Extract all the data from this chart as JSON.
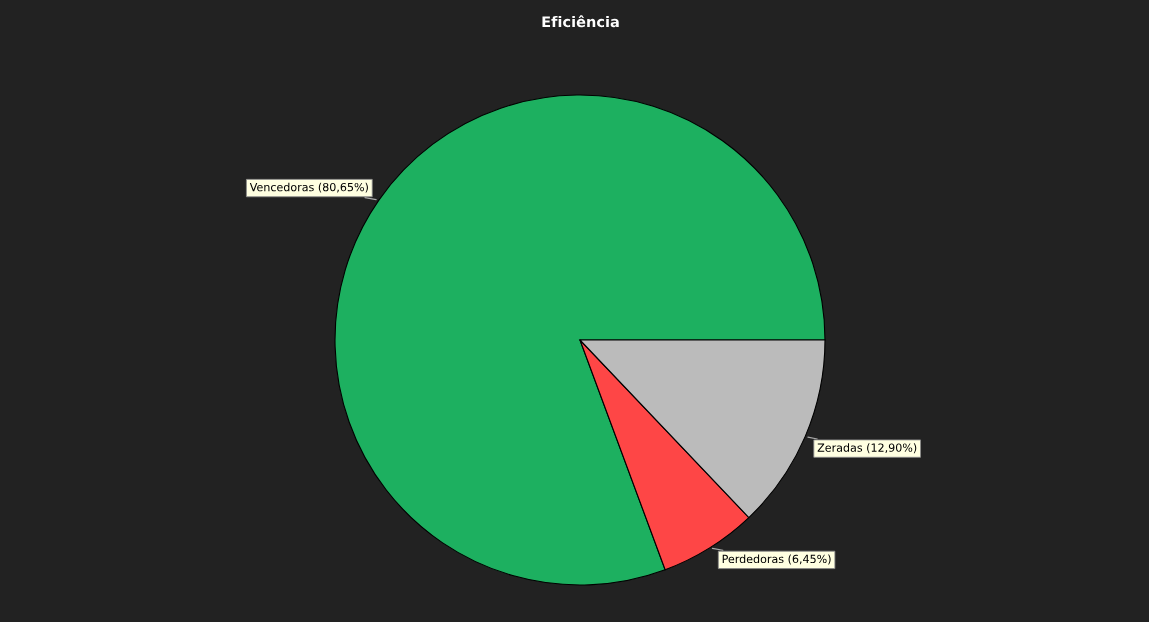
{
  "chart_data": {
    "type": "pie",
    "title": "Eficiência",
    "categories": [
      "Vencedoras",
      "Perdedoras",
      "Zeradas"
    ],
    "values": [
      80.65,
      6.45,
      12.9
    ],
    "value_labels": [
      "(80,65%)",
      "(6,45%)",
      "(12,90%)"
    ],
    "colors": [
      "#1db060",
      "#fe4646",
      "#bbbbbb"
    ],
    "legend": false
  }
}
